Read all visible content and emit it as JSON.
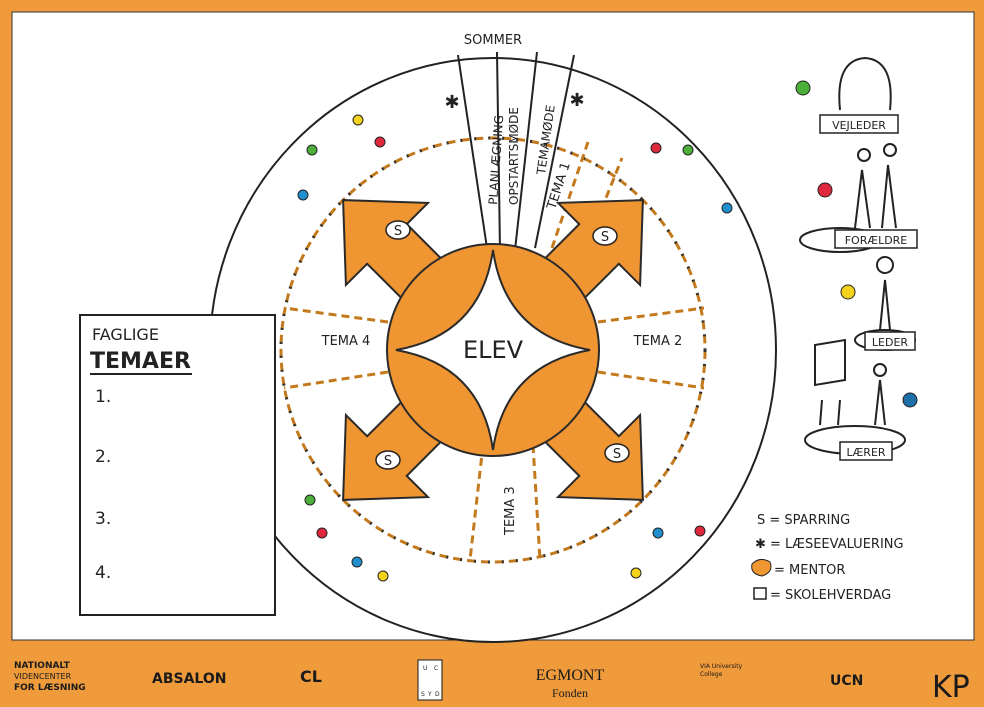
{
  "cycle": {
    "season": "SOMMER",
    "strips": [
      "PLANLÆGNING",
      "OPSTARTSMØDE",
      "TEMAMØDE"
    ],
    "themes": [
      "TEMA 1",
      "TEMA 2",
      "TEMA 3",
      "TEMA 4"
    ],
    "center": "ELEV",
    "sparring_marks": [
      "S",
      "S",
      "S",
      "S"
    ],
    "evaluation_marks": [
      "✱",
      "✱"
    ]
  },
  "subject_box": {
    "title_line1": "FAGLIGE",
    "title_line2": "TEMAER",
    "items": [
      "1.",
      "2.",
      "3.",
      "4."
    ]
  },
  "roles": [
    "VEJLEDER",
    "FORÆLDRE",
    "LEDER",
    "LÆRER"
  ],
  "legend": [
    "S = SPARRING",
    "✱ = LÆSEEVALUERING",
    "= MENTOR",
    "= SKOLEHVERDAG"
  ],
  "footer_logos": {
    "nvl": [
      "NATIONALT",
      "VIDENCENTER",
      "FOR LÆSNING"
    ],
    "absalon": "ABSALON",
    "cl": "CL",
    "ucsyd": [
      "U",
      "C",
      "S",
      "Y",
      "D"
    ],
    "egmont": [
      "EGMONT",
      "Fonden"
    ],
    "via": [
      "VIA University",
      "College"
    ],
    "ucn": "UCN",
    "kp": "KP"
  }
}
